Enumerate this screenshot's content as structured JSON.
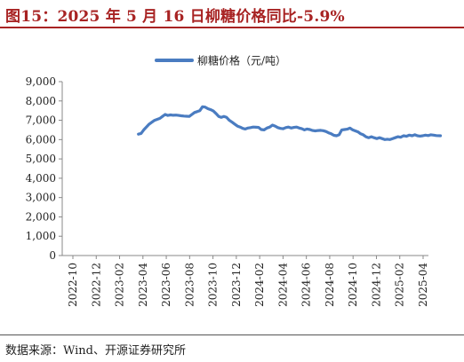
{
  "header": {
    "title": "图15：2025 年 5 月 16 日柳糖价格同比-5.9%"
  },
  "footer": {
    "source": "数据来源：Wind、开源证券研究所"
  },
  "colors": {
    "title": "#a82323",
    "series": "#4a7cc1",
    "axis": "#888888"
  },
  "chart_data": {
    "type": "line",
    "ylim": [
      0,
      9000
    ],
    "y_ticks": [
      "0",
      "1,000",
      "2,000",
      "3,000",
      "4,000",
      "5,000",
      "6,000",
      "7,000",
      "8,000",
      "9,000"
    ],
    "x_ticks": [
      "2022-10",
      "2022-12",
      "2023-02",
      "2023-04",
      "2023-06",
      "2023-08",
      "2023-10",
      "2023-12",
      "2024-02",
      "2024-04",
      "2024-06",
      "2024-08",
      "2024-10",
      "2024-12",
      "2025-02",
      "2025-04"
    ],
    "legend_position": "top-center",
    "series": [
      {
        "name": "柳糖价格（元/吨）",
        "points": [
          [
            "2023-03-20",
            6280
          ],
          [
            "2023-03-27",
            6320
          ],
          [
            "2023-04-03",
            6500
          ],
          [
            "2023-04-10",
            6650
          ],
          [
            "2023-04-17",
            6800
          ],
          [
            "2023-04-24",
            6900
          ],
          [
            "2023-05-01",
            7000
          ],
          [
            "2023-05-08",
            7050
          ],
          [
            "2023-05-15",
            7100
          ],
          [
            "2023-05-22",
            7200
          ],
          [
            "2023-05-29",
            7300
          ],
          [
            "2023-06-05",
            7250
          ],
          [
            "2023-06-12",
            7280
          ],
          [
            "2023-06-19",
            7260
          ],
          [
            "2023-06-26",
            7270
          ],
          [
            "2023-07-03",
            7250
          ],
          [
            "2023-07-10",
            7230
          ],
          [
            "2023-07-17",
            7220
          ],
          [
            "2023-07-24",
            7210
          ],
          [
            "2023-07-31",
            7200
          ],
          [
            "2023-08-07",
            7300
          ],
          [
            "2023-08-14",
            7400
          ],
          [
            "2023-08-21",
            7450
          ],
          [
            "2023-08-28",
            7500
          ],
          [
            "2023-09-04",
            7700
          ],
          [
            "2023-09-11",
            7680
          ],
          [
            "2023-09-18",
            7600
          ],
          [
            "2023-09-25",
            7550
          ],
          [
            "2023-10-02",
            7480
          ],
          [
            "2023-10-09",
            7350
          ],
          [
            "2023-10-16",
            7200
          ],
          [
            "2023-10-23",
            7150
          ],
          [
            "2023-10-30",
            7200
          ],
          [
            "2023-11-06",
            7150
          ],
          [
            "2023-11-13",
            7000
          ],
          [
            "2023-11-20",
            6900
          ],
          [
            "2023-11-27",
            6800
          ],
          [
            "2023-12-04",
            6700
          ],
          [
            "2023-12-11",
            6650
          ],
          [
            "2023-12-18",
            6580
          ],
          [
            "2023-12-25",
            6550
          ],
          [
            "2024-01-01",
            6600
          ],
          [
            "2024-01-08",
            6620
          ],
          [
            "2024-01-15",
            6650
          ],
          [
            "2024-01-22",
            6640
          ],
          [
            "2024-01-29",
            6630
          ],
          [
            "2024-02-05",
            6520
          ],
          [
            "2024-02-12",
            6500
          ],
          [
            "2024-02-19",
            6600
          ],
          [
            "2024-02-26",
            6650
          ],
          [
            "2024-03-04",
            6750
          ],
          [
            "2024-03-11",
            6700
          ],
          [
            "2024-03-18",
            6620
          ],
          [
            "2024-03-25",
            6580
          ],
          [
            "2024-04-01",
            6560
          ],
          [
            "2024-04-08",
            6620
          ],
          [
            "2024-04-15",
            6650
          ],
          [
            "2024-04-22",
            6600
          ],
          [
            "2024-04-29",
            6630
          ],
          [
            "2024-05-06",
            6650
          ],
          [
            "2024-05-13",
            6600
          ],
          [
            "2024-05-20",
            6560
          ],
          [
            "2024-05-27",
            6500
          ],
          [
            "2024-06-03",
            6550
          ],
          [
            "2024-06-10",
            6520
          ],
          [
            "2024-06-17",
            6470
          ],
          [
            "2024-06-24",
            6450
          ],
          [
            "2024-07-01",
            6470
          ],
          [
            "2024-07-08",
            6480
          ],
          [
            "2024-07-15",
            6460
          ],
          [
            "2024-07-22",
            6420
          ],
          [
            "2024-07-29",
            6350
          ],
          [
            "2024-08-05",
            6300
          ],
          [
            "2024-08-12",
            6220
          ],
          [
            "2024-08-19",
            6200
          ],
          [
            "2024-08-26",
            6250
          ],
          [
            "2024-09-02",
            6500
          ],
          [
            "2024-09-09",
            6520
          ],
          [
            "2024-09-16",
            6540
          ],
          [
            "2024-09-23",
            6600
          ],
          [
            "2024-09-30",
            6500
          ],
          [
            "2024-10-07",
            6450
          ],
          [
            "2024-10-14",
            6400
          ],
          [
            "2024-10-21",
            6300
          ],
          [
            "2024-10-28",
            6250
          ],
          [
            "2024-11-04",
            6150
          ],
          [
            "2024-11-11",
            6100
          ],
          [
            "2024-11-18",
            6150
          ],
          [
            "2024-11-25",
            6100
          ],
          [
            "2024-12-02",
            6050
          ],
          [
            "2024-12-09",
            6100
          ],
          [
            "2024-12-16",
            6050
          ],
          [
            "2024-12-23",
            6000
          ],
          [
            "2024-12-30",
            6020
          ],
          [
            "2025-01-06",
            6000
          ],
          [
            "2025-01-13",
            6050
          ],
          [
            "2025-01-20",
            6100
          ],
          [
            "2025-01-27",
            6150
          ],
          [
            "2025-02-03",
            6120
          ],
          [
            "2025-02-10",
            6200
          ],
          [
            "2025-02-17",
            6170
          ],
          [
            "2025-02-24",
            6230
          ],
          [
            "2025-03-03",
            6200
          ],
          [
            "2025-03-10",
            6250
          ],
          [
            "2025-03-17",
            6200
          ],
          [
            "2025-03-24",
            6180
          ],
          [
            "2025-03-31",
            6200
          ],
          [
            "2025-04-07",
            6230
          ],
          [
            "2025-04-14",
            6210
          ],
          [
            "2025-04-21",
            6250
          ],
          [
            "2025-04-28",
            6230
          ],
          [
            "2025-05-05",
            6210
          ],
          [
            "2025-05-16",
            6200
          ]
        ]
      }
    ]
  }
}
